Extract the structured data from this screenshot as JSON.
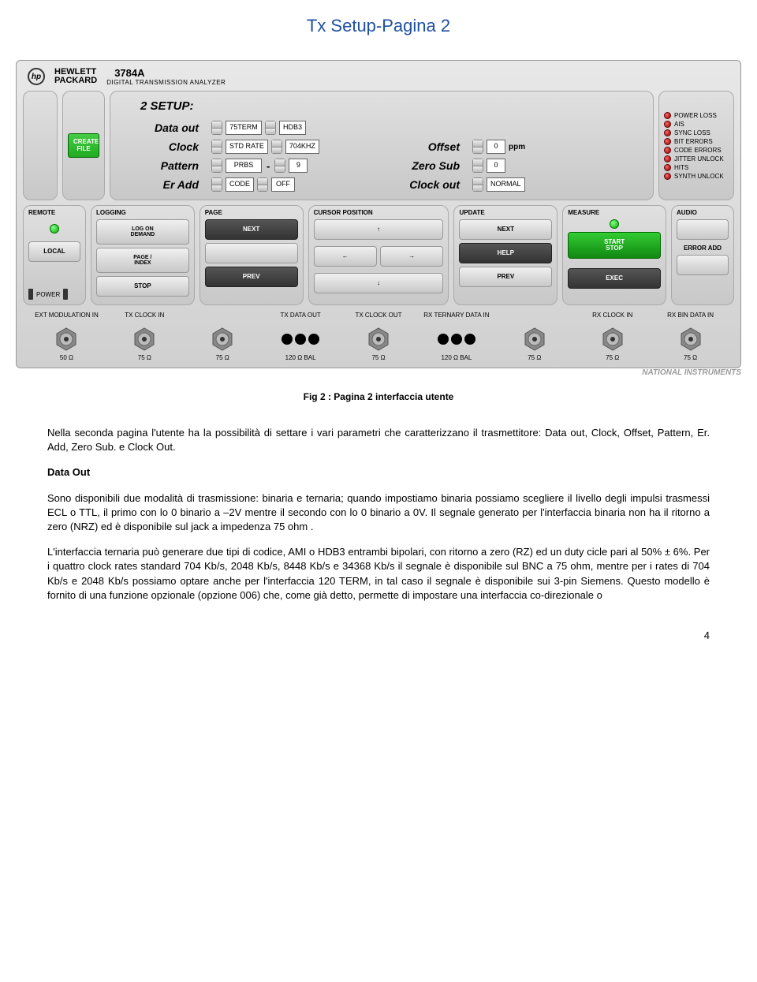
{
  "page_title": "Tx Setup-Pagina 2",
  "colors": {
    "title": "#2050a0",
    "led_red": "#800000",
    "led_green": "#00a000"
  },
  "instrument": {
    "brand_logo": "hp",
    "brand": "HEWLETT\nPACKARD",
    "model": "3784A",
    "model_sub": "DIGITAL TRANSMISSION ANALYZER",
    "create_file": "CREATE\nFILE",
    "setup": {
      "title": "2 SETUP:",
      "rows": {
        "data_out": {
          "label": "Data out",
          "v1": "75TERM",
          "v2": "HDB3"
        },
        "clock": {
          "label": "Clock",
          "v1": "STD RATE",
          "v2": "704KHZ"
        },
        "pattern": {
          "label": "Pattern",
          "v1": "PRBS",
          "v2": "9"
        },
        "er_add": {
          "label": "Er Add",
          "v1": "CODE",
          "v2": "OFF"
        },
        "offset": {
          "label": "Offset",
          "v": "0",
          "unit": "ppm"
        },
        "zero_sub": {
          "label": "Zero Sub",
          "v": "0"
        },
        "clock_out": {
          "label": "Clock out",
          "v": "NORMAL"
        }
      }
    },
    "status_leds": [
      "POWER LOSS",
      "AIS",
      "SYNC LOSS",
      "BIT ERRORS",
      "CODE ERRORS",
      "JITTER UNLOCK",
      "HITS",
      "SYNTH UNLOCK"
    ],
    "sections": {
      "remote": {
        "label": "REMOTE",
        "btn": "LOCAL",
        "power": "POWER"
      },
      "logging": {
        "label": "LOGGING",
        "b1": "LOG ON\nDEMAND",
        "b2": "PAGE /\nINDEX",
        "b3": "STOP"
      },
      "page": {
        "label": "PAGE",
        "b1": "NEXT",
        "b3": "PREV"
      },
      "cursor": {
        "label": "CURSOR POSITION",
        "up": "↑",
        "down": "↓",
        "left": "←",
        "right": "→"
      },
      "update": {
        "label": "UPDATE",
        "b1": "NEXT",
        "b2": "HELP",
        "b3": "PREV"
      },
      "measure": {
        "label": "MEASURE",
        "b1": "START\nSTOP",
        "b3": "EXEC"
      },
      "audio": {
        "label": "AUDIO",
        "err": "ERROR ADD"
      }
    },
    "connectors": [
      {
        "label": "EXT MODULATION IN",
        "type": "bnc",
        "ohm": "50 Ω"
      },
      {
        "label": "TX CLOCK IN",
        "type": "bnc",
        "ohm": "75 Ω"
      },
      {
        "label": "",
        "type": "bnc",
        "ohm": "75 Ω"
      },
      {
        "label": "TX DATA OUT",
        "type": "dots",
        "ohm": "120 Ω BAL"
      },
      {
        "label": "",
        "type": "bnc-under",
        "ohm": "75 Ω",
        "top_label": "TX CLOCK OUT"
      },
      {
        "label": "",
        "type": "dots",
        "ohm": "120 Ω BAL",
        "top_label": "RX TERNARY DATA IN"
      },
      {
        "label": "",
        "type": "bnc",
        "ohm": "75 Ω"
      },
      {
        "label": "RX CLOCK IN",
        "type": "bnc",
        "ohm": "75 Ω"
      },
      {
        "label": "RX BIN DATA IN",
        "type": "bnc",
        "ohm": "75 Ω"
      }
    ],
    "watermark": "NATIONAL INSTRUMENTS"
  },
  "caption": "Fig 2 : Pagina 2 interfaccia utente",
  "body": {
    "p1": "Nella seconda pagina l'utente ha la possibilità di settare i vari parametri che caratterizzano il trasmettitore: Data out, Clock, Offset, Pattern, Er. Add, Zero Sub. e Clock Out.",
    "h1": "Data Out",
    "p2": "Sono disponibili due modalità di trasmissione: binaria e ternaria; quando impostiamo binaria possiamo scegliere il livello degli impulsi trasmessi ECL o TTL, il primo  con lo 0 binario a –2V mentre il secondo con lo 0 binario a 0V. Il segnale generato per l'interfaccia binaria non ha il ritorno a zero (NRZ) ed è disponibile sul jack a impedenza 75 ohm .",
    "p3": "L'interfaccia ternaria può generare due tipi di codice, AMI o HDB3 entrambi bipolari, con ritorno a zero (RZ) ed un duty cicle pari al 50% ± 6%. Per i quattro clock rates standard 704 Kb/s, 2048 Kb/s, 8448 Kb/s e 34368 Kb/s il segnale è disponibile sul BNC a 75 ohm, mentre per i rates di 704 Kb/s e 2048 Kb/s possiamo optare anche per l'interfaccia 120 TERM, in tal caso il segnale è disponibile sui 3-pin Siemens. Questo modello è fornito di una funzione opzionale (opzione 006) che, come già detto, permette di impostare una interfaccia co-direzionale o"
  },
  "page_number": "4"
}
